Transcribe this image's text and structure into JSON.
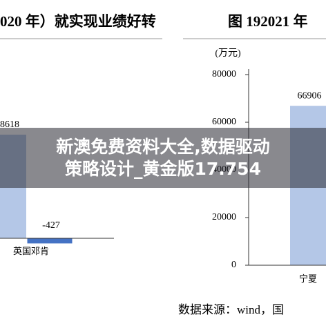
{
  "header": {
    "left_title": "020 年）就实现业绩好转",
    "right_title": "图 192021 年"
  },
  "chart_data": [
    {
      "type": "bar",
      "categories": [
        null,
        "英国邓肯"
      ],
      "values": [
        8618,
        -427
      ],
      "colors": [
        "#b4c7e7",
        "#4472c4"
      ],
      "ylim": [
        -1000,
        9000
      ]
    },
    {
      "type": "bar",
      "ylabel": "(万元)",
      "categories": [
        "宁夏"
      ],
      "values": [
        66906
      ],
      "color": "#b4c7e7",
      "ylim": [
        0,
        80000
      ],
      "yticks": [
        0,
        20000,
        40000,
        60000,
        80000
      ]
    }
  ],
  "source": "数据来源：wind，国",
  "overlay": {
    "lines": [
      "新澳免费资料大全,数据驱动",
      "策略设计_黄金版17.754"
    ]
  }
}
